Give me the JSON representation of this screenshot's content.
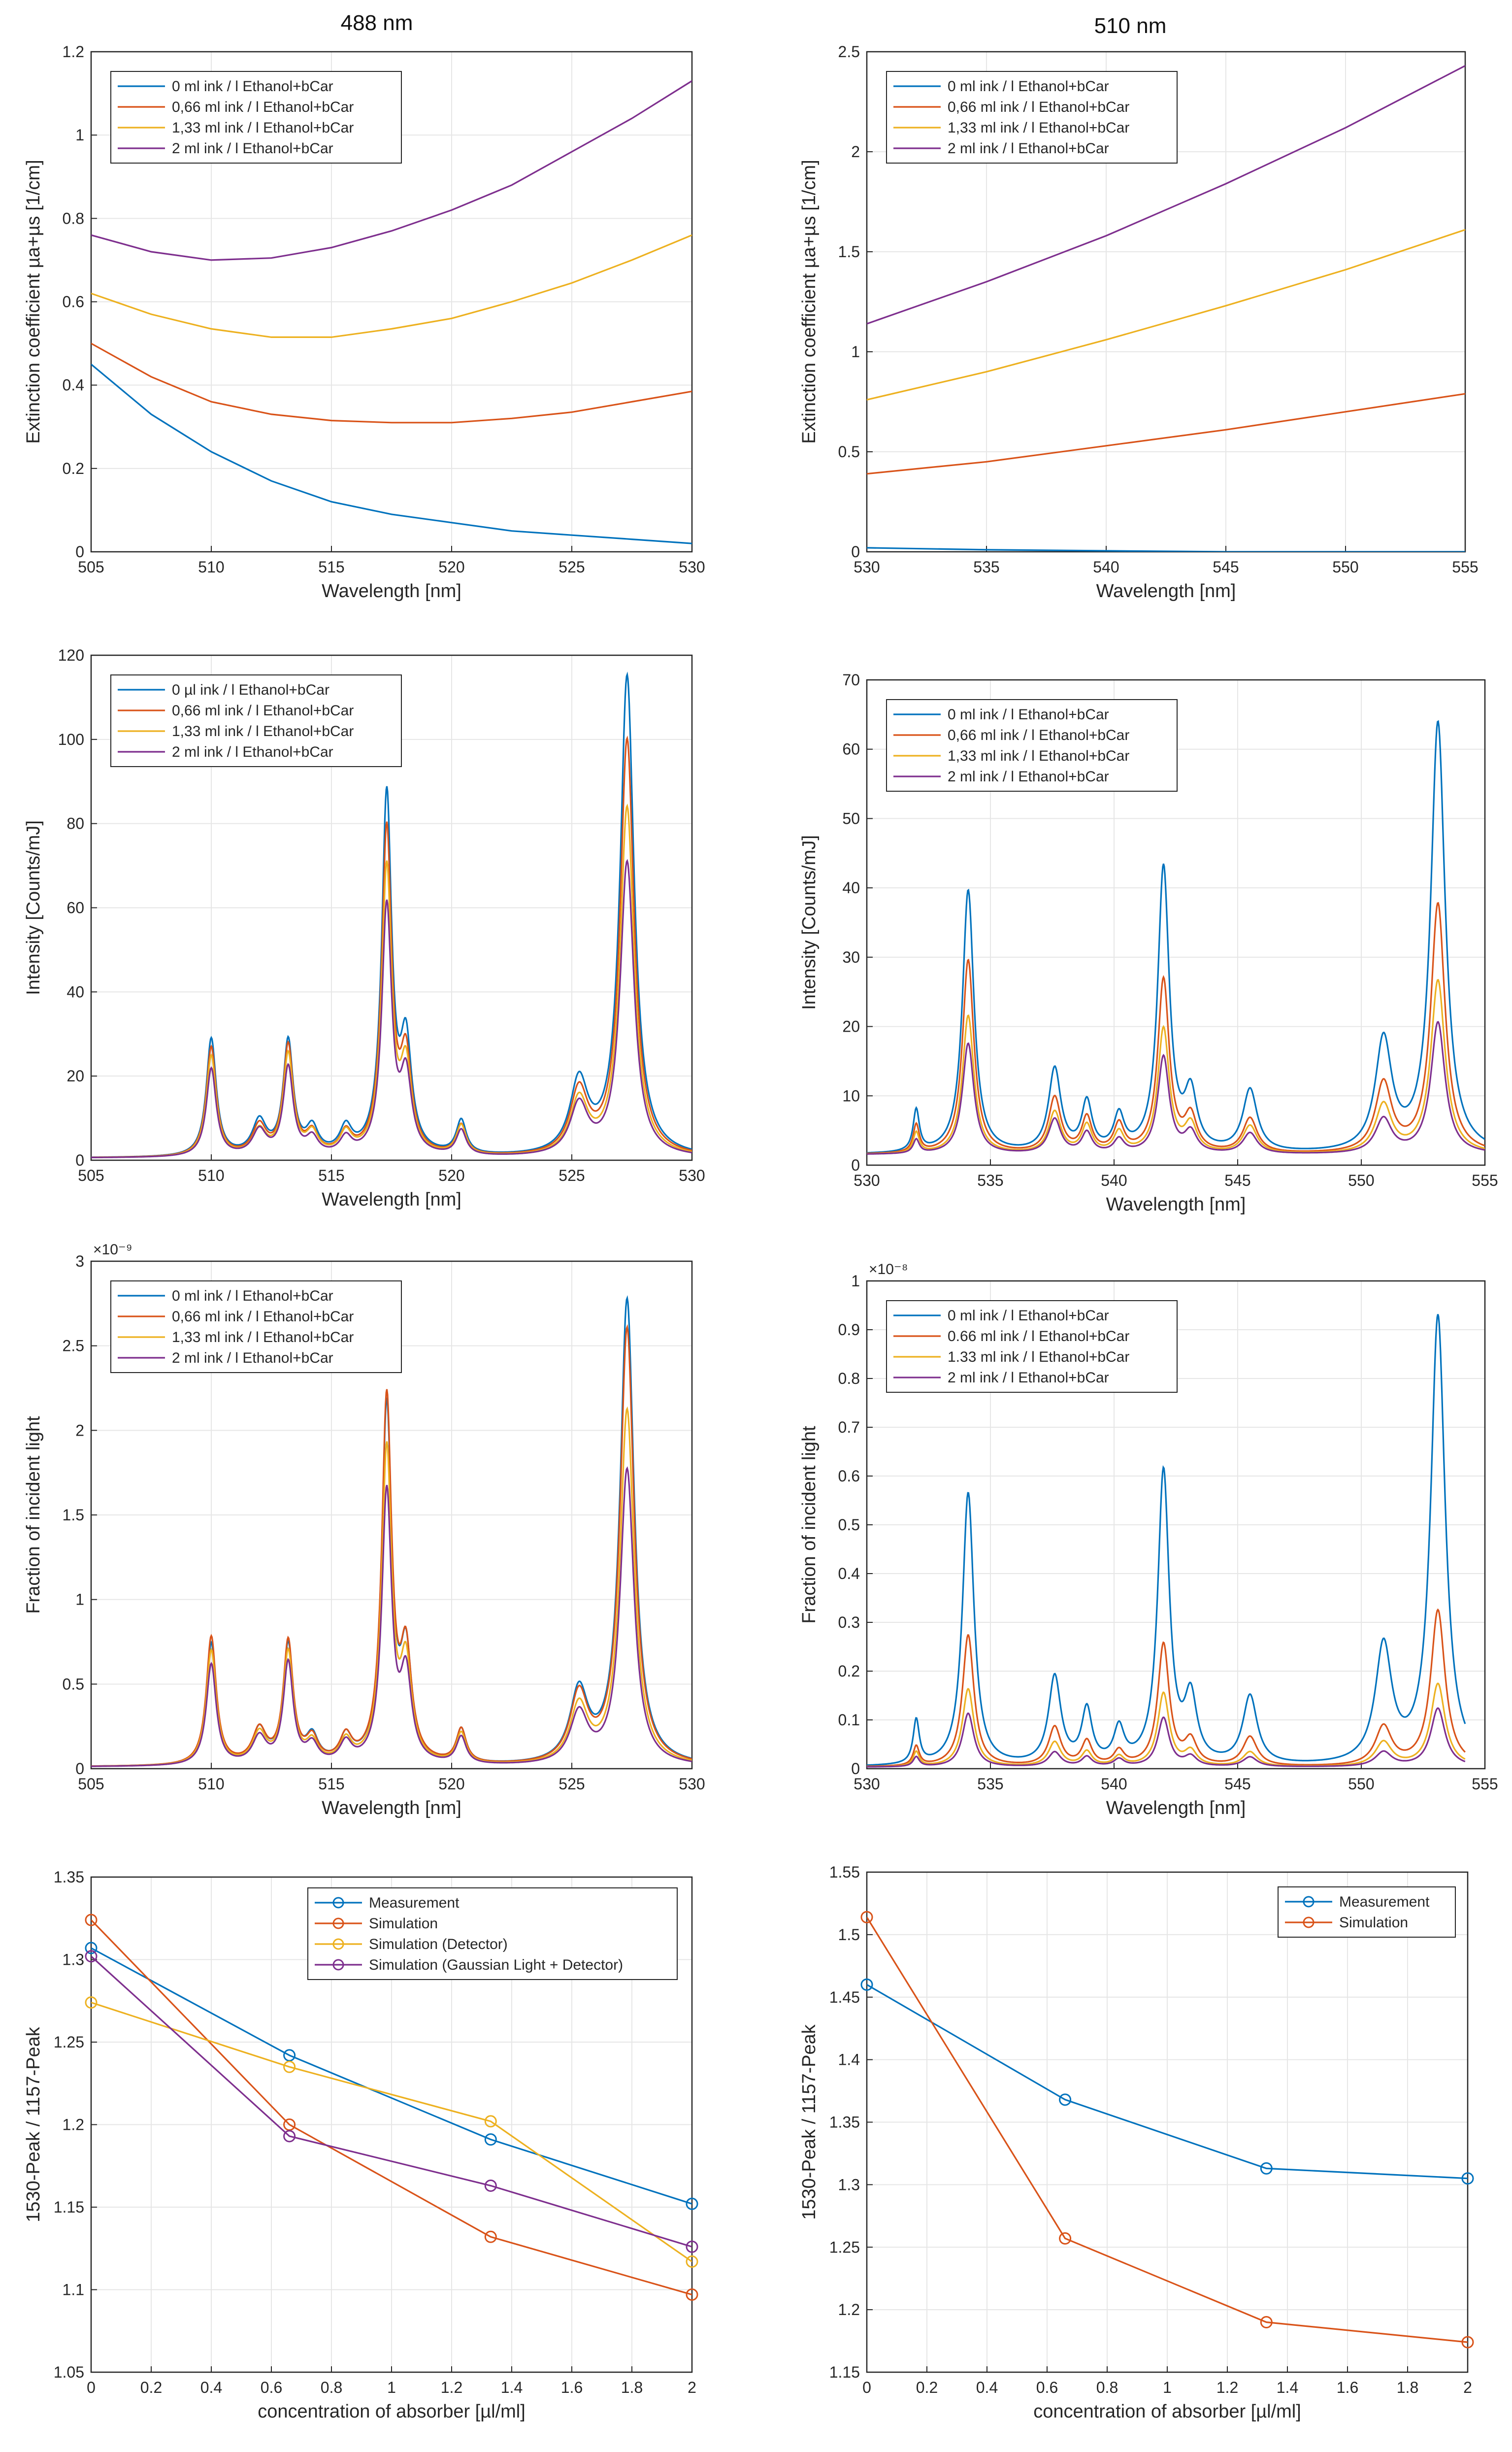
{
  "header": {
    "left_title": "488 nm",
    "right_title": "510 nm"
  },
  "colors": {
    "c1": "#0072BD",
    "c2": "#D95319",
    "c3": "#EDB120",
    "c4": "#7E2F8E",
    "c5": "#77AC30"
  },
  "chart_data": [
    {
      "id": "ext-488",
      "type": "line",
      "xlabel": "Wavelength [nm]",
      "ylabel": "Extinction coefficient µa+µs [1/cm]",
      "xlim": [
        505,
        530
      ],
      "ylim": [
        0,
        1.2
      ],
      "xticks": [
        505,
        510,
        515,
        520,
        525,
        530
      ],
      "xtick_labels": [
        "505",
        "510",
        "515",
        "520",
        "525",
        "530"
      ],
      "yticks": [
        0,
        0.2,
        0.4,
        0.6,
        0.8,
        1,
        1.2
      ],
      "ytick_labels": [
        "0",
        "0.2",
        "0.4",
        "0.6",
        "0.8",
        "1",
        "1.2"
      ],
      "legend_position": "top-left",
      "x": [
        505,
        507.5,
        510,
        512.5,
        515,
        517.5,
        520,
        522.5,
        525,
        527.5,
        530
      ],
      "series": [
        {
          "name": "0 ml ink / l Ethanol+bCar",
          "values": [
            0.45,
            0.33,
            0.24,
            0.17,
            0.12,
            0.09,
            0.07,
            0.05,
            0.04,
            0.03,
            0.02
          ]
        },
        {
          "name": "0,66 ml ink / l Ethanol+bCar",
          "values": [
            0.5,
            0.42,
            0.36,
            0.33,
            0.315,
            0.31,
            0.31,
            0.32,
            0.335,
            0.36,
            0.385
          ]
        },
        {
          "name": "1,33 ml ink / l Ethanol+bCar",
          "values": [
            0.62,
            0.57,
            0.535,
            0.515,
            0.515,
            0.535,
            0.56,
            0.6,
            0.645,
            0.7,
            0.76
          ]
        },
        {
          "name": "2 ml ink / l Ethanol+bCar",
          "values": [
            0.76,
            0.72,
            0.7,
            0.705,
            0.73,
            0.77,
            0.82,
            0.88,
            0.96,
            1.04,
            1.13
          ]
        }
      ]
    },
    {
      "id": "ext-510",
      "type": "line",
      "xlabel": "Wavelength [nm]",
      "ylabel": "Extinction coefficient µa+µs [1/cm]",
      "xlim": [
        530,
        555
      ],
      "ylim": [
        0,
        2.5
      ],
      "xticks": [
        530,
        535,
        540,
        545,
        550,
        555
      ],
      "xtick_labels": [
        "530",
        "535",
        "540",
        "545",
        "550",
        "555"
      ],
      "yticks": [
        0,
        0.5,
        1,
        1.5,
        2,
        2.5
      ],
      "ytick_labels": [
        "0",
        "0.5",
        "1",
        "1.5",
        "2",
        "2.5"
      ],
      "legend_position": "top-left",
      "x": [
        530,
        535,
        540,
        545,
        550,
        555
      ],
      "series": [
        {
          "name": "0 ml ink / l Ethanol+bCar",
          "values": [
            0.02,
            0.01,
            0.005,
            0.0,
            0.0,
            0.0
          ]
        },
        {
          "name": "0,66 ml ink / l Ethanol+bCar",
          "values": [
            0.39,
            0.45,
            0.53,
            0.61,
            0.7,
            0.79
          ]
        },
        {
          "name": "1,33 ml ink / l Ethanol+bCar",
          "values": [
            0.76,
            0.9,
            1.06,
            1.23,
            1.41,
            1.61
          ]
        },
        {
          "name": "2 ml ink / l Ethanol+bCar",
          "values": [
            1.14,
            1.35,
            1.58,
            1.84,
            2.12,
            2.43
          ]
        }
      ]
    },
    {
      "id": "int-488",
      "type": "line",
      "xlabel": "Wavelength [nm]",
      "ylabel": "Intensity [Counts/mJ]",
      "xlim": [
        505,
        530
      ],
      "ylim": [
        0,
        120
      ],
      "xticks": [
        505,
        510,
        515,
        520,
        525,
        530
      ],
      "xtick_labels": [
        "505",
        "510",
        "515",
        "520",
        "525",
        "530"
      ],
      "yticks": [
        0,
        20,
        40,
        60,
        80,
        100,
        120
      ],
      "ytick_labels": [
        "0",
        "20",
        "40",
        "60",
        "80",
        "100",
        "120"
      ],
      "legend_position": "top-left",
      "baseline": 0.5,
      "peaks": [
        [
          510,
          0.25
        ],
        [
          512,
          0.35
        ],
        [
          513.2,
          0.25
        ],
        [
          514.2,
          0.3
        ],
        [
          515.6,
          0.3
        ],
        [
          517.3,
          0.25
        ],
        [
          518.1,
          0.28
        ],
        [
          520.4,
          0.25
        ],
        [
          525.3,
          0.45
        ],
        [
          527.3,
          0.35
        ]
      ],
      "series": [
        {
          "name": "0 µl ink / l Ethanol+bCar",
          "amps": [
            28,
            8,
            27,
            6,
            6,
            85,
            25,
            8,
            17,
            114
          ]
        },
        {
          "name": "0,66 ml ink / l Ethanol+bCar",
          "amps": [
            26,
            7,
            26,
            5,
            5,
            77,
            22,
            7,
            15,
            99
          ]
        },
        {
          "name": "1,33 ml ink / l Ethanol+bCar",
          "amps": [
            24,
            6,
            24,
            5,
            5,
            68,
            20,
            7,
            13,
            83
          ]
        },
        {
          "name": "2 ml ink / l Ethanol+bCar",
          "amps": [
            21,
            6,
            21,
            4,
            4,
            59,
            18,
            6,
            12,
            70
          ]
        }
      ]
    },
    {
      "id": "int-510",
      "type": "line",
      "xlabel": "Wavelength [nm]",
      "ylabel": "Intensity [Counts/mJ]",
      "xlim": [
        530,
        555
      ],
      "ylim": [
        0,
        70
      ],
      "xticks": [
        530,
        535,
        540,
        545,
        550,
        555
      ],
      "xtick_labels": [
        "530",
        "535",
        "540",
        "545",
        "550",
        "555"
      ],
      "yticks": [
        0,
        10,
        20,
        30,
        40,
        50,
        60,
        70
      ],
      "ytick_labels": [
        "0",
        "10",
        "20",
        "30",
        "40",
        "50",
        "60",
        "70"
      ],
      "legend_position": "top-left",
      "baseline": 1.5,
      "peaks": [
        [
          532,
          0.15
        ],
        [
          534.1,
          0.28
        ],
        [
          537.6,
          0.3
        ],
        [
          538.9,
          0.25
        ],
        [
          540.2,
          0.25
        ],
        [
          542,
          0.28
        ],
        [
          543.1,
          0.3
        ],
        [
          545.5,
          0.35
        ],
        [
          550.9,
          0.4
        ],
        [
          553.1,
          0.35
        ]
      ],
      "series": [
        {
          "name": "0 ml ink / l Ethanol+bCar",
          "amps": [
            6,
            38,
            12,
            7,
            5,
            41,
            8,
            9,
            16,
            62
          ]
        },
        {
          "name": "0,66 ml ink / l Ethanol+bCar",
          "amps": [
            4,
            28,
            8,
            5,
            4,
            25,
            5,
            5,
            10,
            36
          ]
        },
        {
          "name": "1,33 ml ink / l Ethanol+bCar",
          "amps": [
            3,
            20,
            6,
            4,
            3,
            18,
            4,
            4,
            7,
            25
          ]
        },
        {
          "name": "2 ml ink / l Ethanol+bCar",
          "amps": [
            2,
            16,
            5,
            3,
            2,
            14,
            3,
            3,
            5,
            19
          ]
        }
      ]
    },
    {
      "id": "frac-488",
      "type": "line",
      "xlabel": "Wavelength [nm]",
      "ylabel": "Fraction of incident light",
      "exponent_label": "×10⁻⁹",
      "xlim": [
        505,
        530
      ],
      "ylim": [
        0,
        3
      ],
      "xticks": [
        505,
        510,
        515,
        520,
        525,
        530
      ],
      "xtick_labels": [
        "505",
        "510",
        "515",
        "520",
        "525",
        "530"
      ],
      "yticks": [
        0,
        0.5,
        1,
        1.5,
        2,
        2.5,
        3
      ],
      "ytick_labels": [
        "0",
        "0.5",
        "1",
        "1.5",
        "2",
        "2.5",
        "3"
      ],
      "legend_position": "top-left",
      "baseline": 0.01,
      "peaks": [
        [
          510,
          0.25
        ],
        [
          512,
          0.35
        ],
        [
          513.2,
          0.25
        ],
        [
          514.2,
          0.3
        ],
        [
          515.6,
          0.3
        ],
        [
          517.3,
          0.25
        ],
        [
          518.1,
          0.28
        ],
        [
          520.4,
          0.25
        ],
        [
          525.3,
          0.45
        ],
        [
          527.3,
          0.35
        ]
      ],
      "series": [
        {
          "name": "0 ml ink / l Ethanol+bCar",
          "amps": [
            0.72,
            0.2,
            0.7,
            0.15,
            0.15,
            2.1,
            0.62,
            0.2,
            0.42,
            2.75
          ]
        },
        {
          "name": "0,66 ml ink / l Ethanol+bCar",
          "amps": [
            0.76,
            0.2,
            0.72,
            0.14,
            0.15,
            2.15,
            0.62,
            0.2,
            0.4,
            2.58
          ]
        },
        {
          "name": "1,33 ml ink / l Ethanol+bCar",
          "amps": [
            0.68,
            0.18,
            0.66,
            0.12,
            0.13,
            1.85,
            0.56,
            0.18,
            0.34,
            2.1
          ]
        },
        {
          "name": "2 ml ink / l Ethanol+bCar",
          "amps": [
            0.6,
            0.16,
            0.6,
            0.11,
            0.12,
            1.6,
            0.5,
            0.16,
            0.3,
            1.75
          ]
        }
      ]
    },
    {
      "id": "frac-510",
      "type": "line",
      "xlabel": "Wavelength [nm]",
      "ylabel": "Fraction of incident light",
      "exponent_label": "×10⁻⁸",
      "xlim": [
        530,
        555
      ],
      "ylim": [
        0,
        1
      ],
      "xticks": [
        530,
        535,
        540,
        545,
        550,
        555
      ],
      "xtick_labels": [
        "530",
        "535",
        "540",
        "545",
        "550",
        "555"
      ],
      "yticks": [
        0,
        0.1,
        0.2,
        0.3,
        0.4,
        0.5,
        0.6,
        0.7,
        0.8,
        0.9,
        1
      ],
      "ytick_labels": [
        "0",
        "0.1",
        "0.2",
        "0.3",
        "0.4",
        "0.5",
        "0.6",
        "0.7",
        "0.8",
        "0.9",
        "1"
      ],
      "legend_position": "top-left",
      "baseline": 0.003,
      "xmax_data": 554.2,
      "peaks": [
        [
          532,
          0.15
        ],
        [
          534.1,
          0.28
        ],
        [
          537.6,
          0.3
        ],
        [
          538.9,
          0.25
        ],
        [
          540.2,
          0.25
        ],
        [
          542,
          0.28
        ],
        [
          543.1,
          0.3
        ],
        [
          545.5,
          0.35
        ],
        [
          550.9,
          0.4
        ],
        [
          553.1,
          0.35
        ]
      ],
      "series": [
        {
          "name": "0 ml ink / l Ethanol+bCar",
          "amps": [
            0.09,
            0.56,
            0.18,
            0.11,
            0.07,
            0.6,
            0.13,
            0.14,
            0.24,
            0.92
          ]
        },
        {
          "name": "0.66 ml ink / l Ethanol+bCar",
          "amps": [
            0.04,
            0.27,
            0.08,
            0.05,
            0.03,
            0.25,
            0.05,
            0.06,
            0.08,
            0.32
          ]
        },
        {
          "name": "1.33 ml ink / l Ethanol+bCar",
          "amps": [
            0.03,
            0.16,
            0.05,
            0.03,
            0.02,
            0.15,
            0.03,
            0.03,
            0.05,
            0.17
          ]
        },
        {
          "name": "2 ml ink / l Ethanol+bCar",
          "amps": [
            0.02,
            0.11,
            0.03,
            0.02,
            0.015,
            0.1,
            0.02,
            0.02,
            0.03,
            0.12
          ]
        }
      ]
    },
    {
      "id": "ratio-488",
      "type": "line",
      "xlabel": "concentration of absorber [µl/ml]",
      "ylabel": "1530-Peak / 1157-Peak",
      "xlim": [
        0,
        2
      ],
      "ylim": [
        1.05,
        1.35
      ],
      "xticks": [
        0,
        0.2,
        0.4,
        0.6,
        0.8,
        1,
        1.2,
        1.4,
        1.6,
        1.8,
        2
      ],
      "xtick_labels": [
        "0",
        "0.2",
        "0.4",
        "0.6",
        "0.8",
        "1",
        "1.2",
        "1.4",
        "1.6",
        "1.8",
        "2"
      ],
      "yticks": [
        1.05,
        1.1,
        1.15,
        1.2,
        1.25,
        1.3,
        1.35
      ],
      "ytick_labels": [
        "1.05",
        "1.1",
        "1.15",
        "1.2",
        "1.25",
        "1.3",
        "1.35"
      ],
      "legend_position": "top-right",
      "x": [
        0,
        0.66,
        1.33,
        2
      ],
      "markers": true,
      "series": [
        {
          "name": "Measurement",
          "values": [
            1.307,
            1.242,
            1.191,
            1.152
          ]
        },
        {
          "name": "Simulation",
          "values": [
            1.324,
            1.2,
            1.132,
            1.097
          ]
        },
        {
          "name": "Simulation (Detector)",
          "values": [
            1.274,
            1.235,
            1.202,
            1.117
          ]
        },
        {
          "name": "Simulation (Gaussian Light + Detector)",
          "values": [
            1.302,
            1.193,
            1.163,
            1.126
          ]
        }
      ]
    },
    {
      "id": "ratio-510",
      "type": "line",
      "xlabel": "concentration of absorber [µl/ml]",
      "ylabel": "1530-Peak / 1157-Peak",
      "xlim": [
        0,
        2
      ],
      "ylim": [
        1.15,
        1.55
      ],
      "xticks": [
        0,
        0.2,
        0.4,
        0.6,
        0.8,
        1,
        1.2,
        1.4,
        1.6,
        1.8,
        2
      ],
      "xtick_labels": [
        "0",
        "0.2",
        "0.4",
        "0.6",
        "0.8",
        "1",
        "1.2",
        "1.4",
        "1.6",
        "1.8",
        "2"
      ],
      "yticks": [
        1.15,
        1.2,
        1.25,
        1.3,
        1.35,
        1.4,
        1.45,
        1.5,
        1.55
      ],
      "ytick_labels": [
        "1.15",
        "1.2",
        "1.25",
        "1.3",
        "1.35",
        "1.4",
        "1.45",
        "1.5",
        "1.55"
      ],
      "legend_position": "top-right",
      "x": [
        0,
        0.66,
        1.33,
        2
      ],
      "markers": true,
      "series": [
        {
          "name": "Measurement",
          "values": [
            1.46,
            1.368,
            1.313,
            1.305
          ]
        },
        {
          "name": "Simulation",
          "values": [
            1.514,
            1.257,
            1.19,
            1.174
          ]
        }
      ]
    }
  ]
}
